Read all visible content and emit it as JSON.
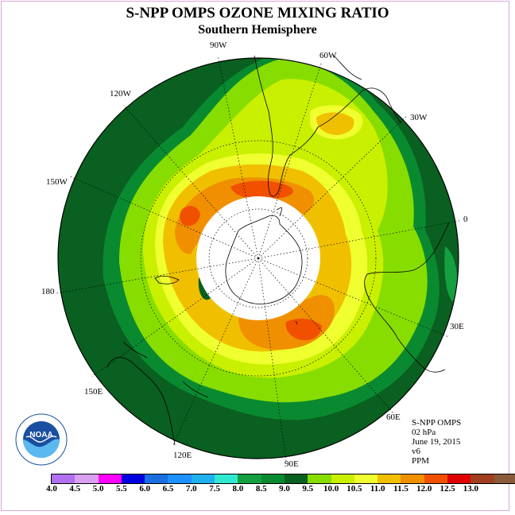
{
  "title": "S-NPP OMPS OZONE MIXING RATIO",
  "subtitle": "Southern Hemisphere",
  "longitude_labels": [
    "90W",
    "60W",
    "30W",
    "120W",
    "150W",
    "0",
    "180",
    "30E",
    "150E",
    "60E",
    "120E",
    "90E"
  ],
  "info": {
    "instrument": "S-NPP OMPS",
    "level": "02 hPa",
    "date": "June 19, 2015",
    "version": "v6",
    "units": "PPM"
  },
  "logo_text": "NOAA",
  "colorbar": {
    "colors": [
      "#b070f0",
      "#d8a0f0",
      "#ff00ff",
      "#0000e0",
      "#1a6ee0",
      "#1e90ff",
      "#20b0f0",
      "#30e8d0",
      "#14a040",
      "#0a8a30",
      "#0a6020",
      "#88dd00",
      "#c8f000",
      "#f0ff30",
      "#f0c000",
      "#f09000",
      "#f05000",
      "#e00000",
      "#a04020",
      "#8b5a3a"
    ],
    "labels": [
      "4.0",
      "4.5",
      "5.0",
      "5.5",
      "6.0",
      "6.5",
      "7.0",
      "7.5",
      "8.0",
      "8.5",
      "9.0",
      "9.5",
      "10.0",
      "10.5",
      "11.0",
      "11.5",
      "12.0",
      "12.5",
      "13.0"
    ]
  }
}
